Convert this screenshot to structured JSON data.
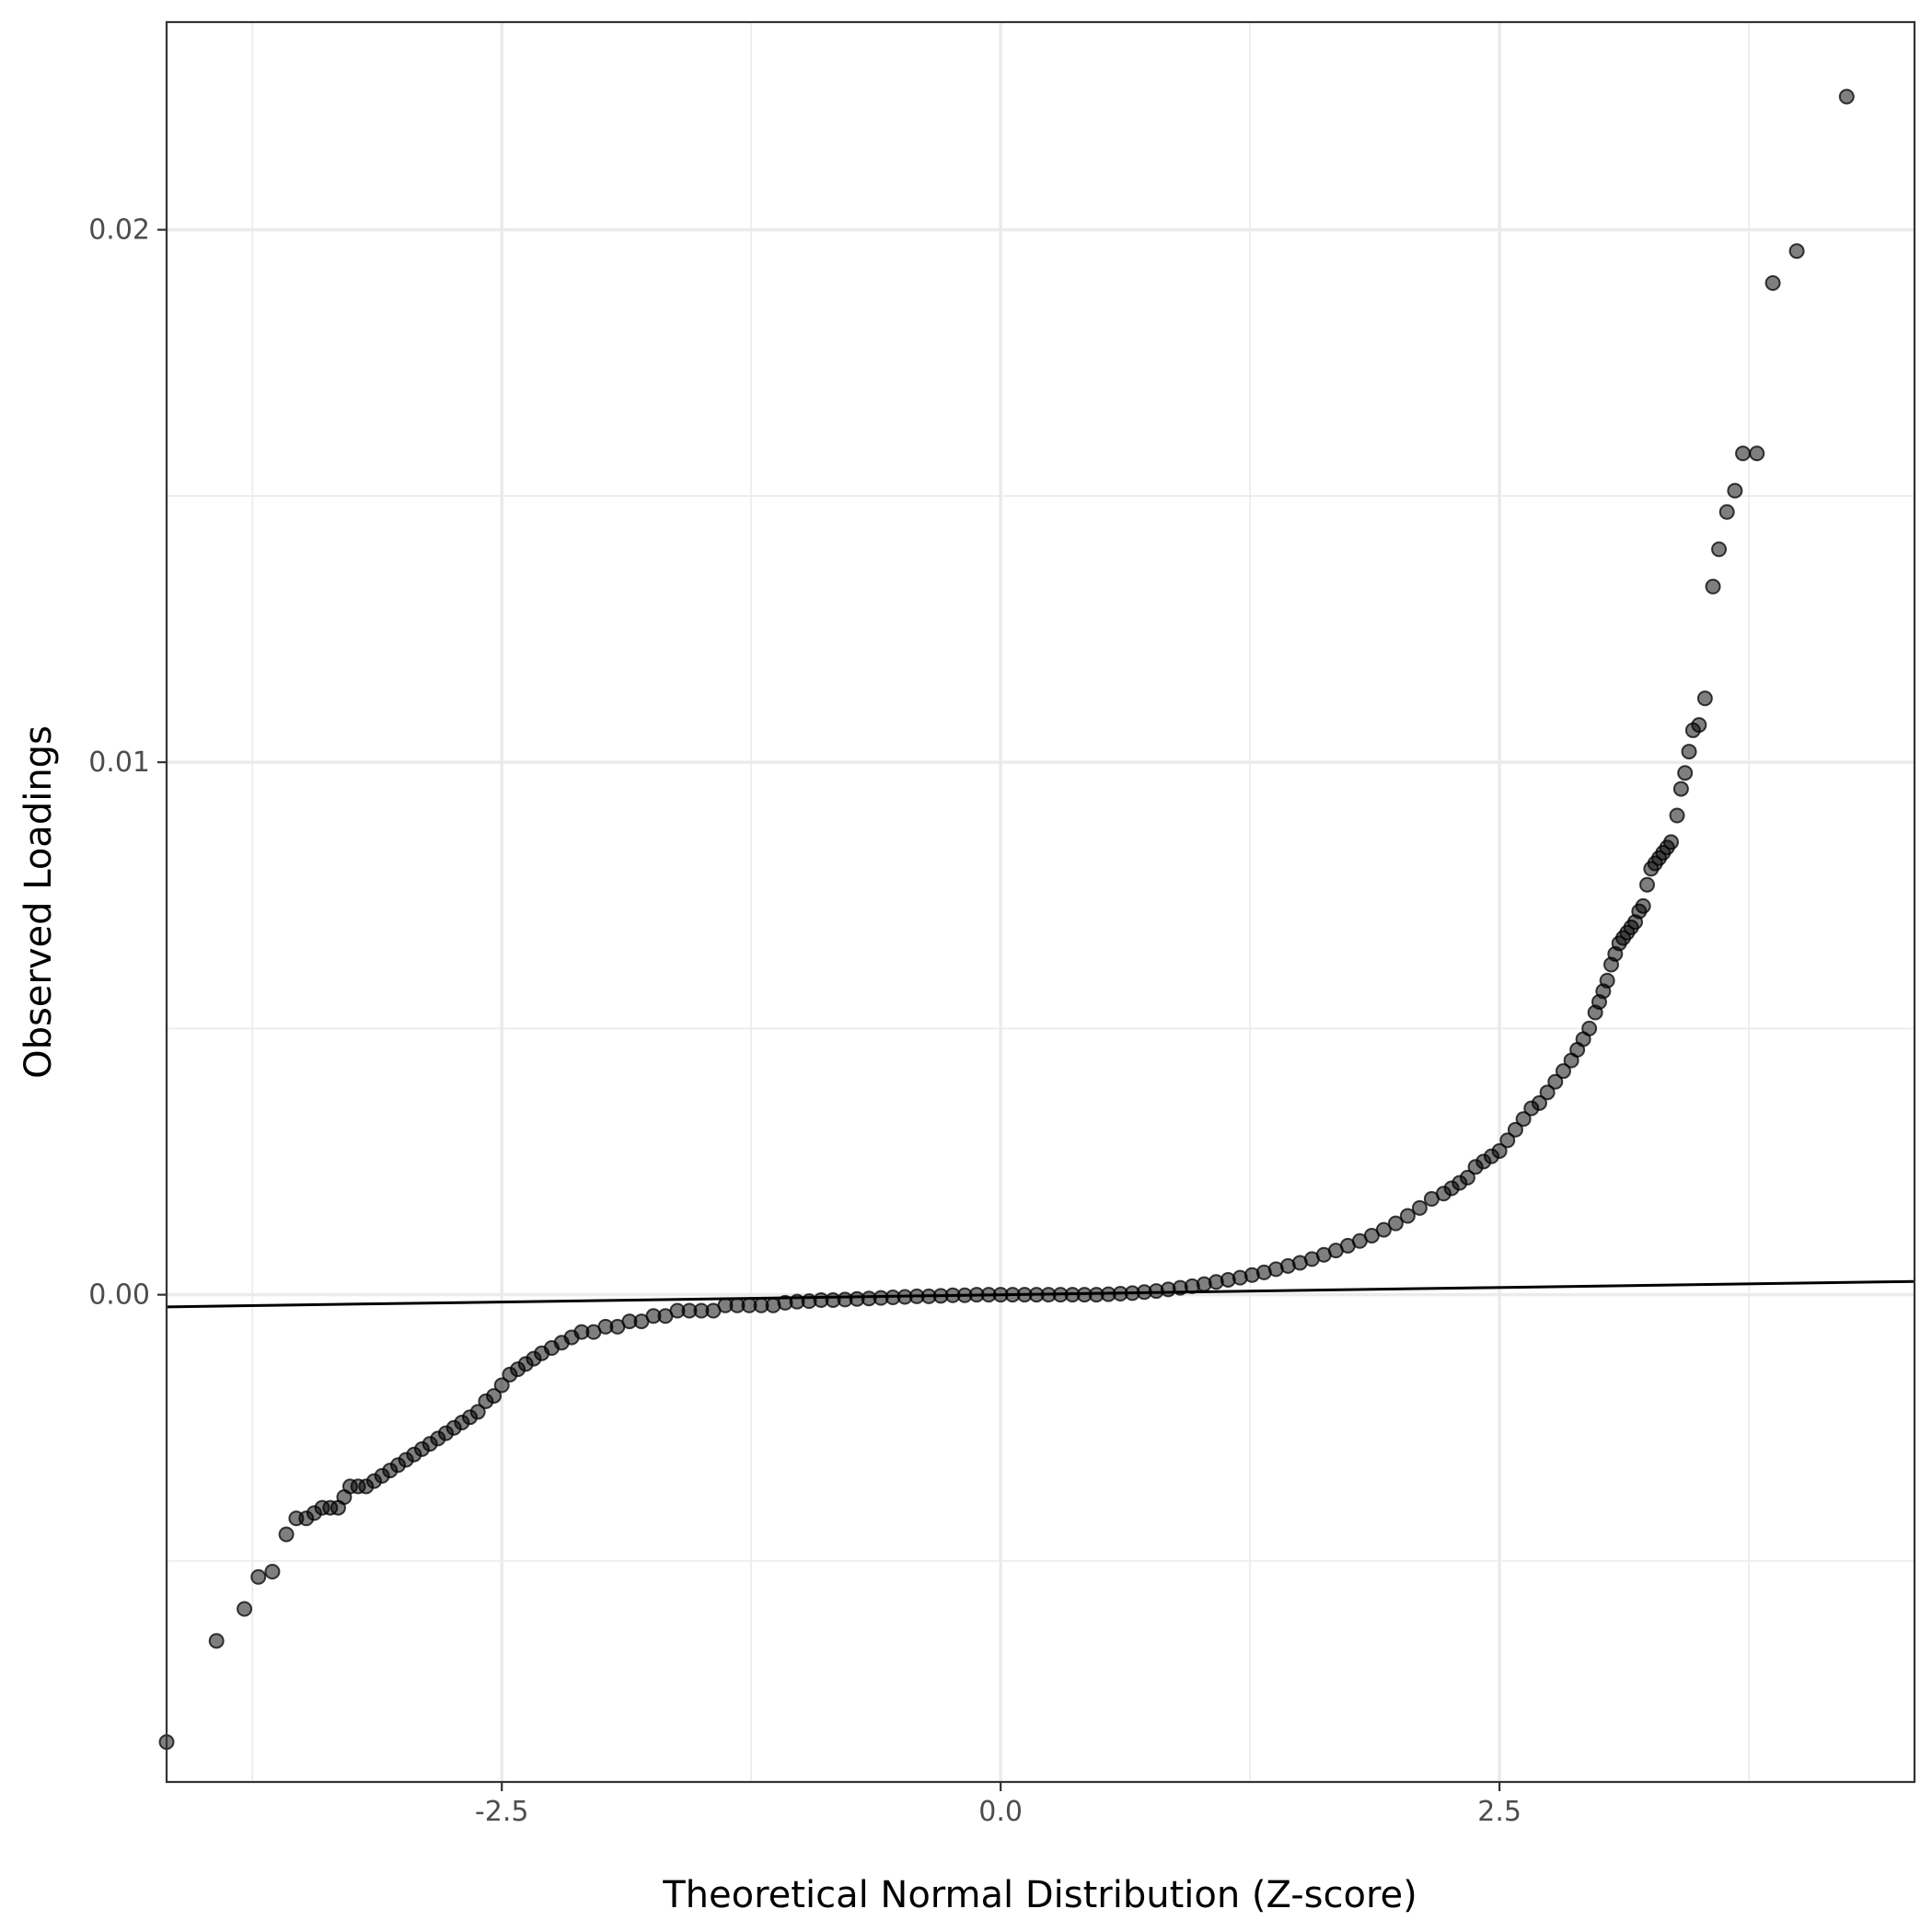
{
  "chart_data": {
    "type": "scatter",
    "title": "",
    "xlabel": "Theoretical Normal Distribution (Z-score)",
    "ylabel": "Observed Loadings",
    "xlim": [
      -4.18,
      4.58
    ],
    "ylim": [
      -0.00915,
      0.0239
    ],
    "x_ticks": [
      {
        "value": -2.5,
        "label": "-2.5"
      },
      {
        "value": 0.0,
        "label": "0.0"
      },
      {
        "value": 2.5,
        "label": "2.5"
      }
    ],
    "y_ticks": [
      {
        "value": 0.0,
        "label": "0.00"
      },
      {
        "value": 0.01,
        "label": "0.01"
      },
      {
        "value": 0.02,
        "label": "0.02"
      }
    ],
    "grid": true,
    "legend": "none",
    "reference_line": {
      "intercept": 0.0,
      "slope": 5.45e-05
    },
    "colors": {
      "points": "#000000",
      "line": "#000000",
      "grid": "#ebebeb",
      "border": "#333333"
    },
    "points": [
      [
        -4.18,
        -0.0084
      ],
      [
        -3.93,
        -0.0065
      ],
      [
        -3.79,
        -0.0059
      ],
      [
        -3.72,
        -0.0053
      ],
      [
        -3.65,
        -0.0052
      ],
      [
        -3.58,
        -0.0045
      ],
      [
        -3.53,
        -0.0042
      ],
      [
        -3.48,
        -0.0042
      ],
      [
        -3.44,
        -0.0041
      ],
      [
        -3.4,
        -0.004
      ],
      [
        -3.36,
        -0.004
      ],
      [
        -3.32,
        -0.004
      ],
      [
        -3.29,
        -0.0038
      ],
      [
        -3.26,
        -0.0036
      ],
      [
        -3.22,
        -0.0036
      ],
      [
        -3.18,
        -0.0036
      ],
      [
        -3.14,
        -0.0035
      ],
      [
        -3.1,
        -0.0034
      ],
      [
        -3.06,
        -0.0033
      ],
      [
        -3.02,
        -0.0032
      ],
      [
        -2.98,
        -0.0031
      ],
      [
        -2.94,
        -0.003
      ],
      [
        -2.9,
        -0.0029
      ],
      [
        -2.86,
        -0.0028
      ],
      [
        -2.82,
        -0.0027
      ],
      [
        -2.78,
        -0.0026
      ],
      [
        -2.74,
        -0.0025
      ],
      [
        -2.7,
        -0.0024
      ],
      [
        -2.66,
        -0.0023
      ],
      [
        -2.62,
        -0.0022
      ],
      [
        -2.58,
        -0.002
      ],
      [
        -2.54,
        -0.0019
      ],
      [
        -2.5,
        -0.0017
      ],
      [
        -2.46,
        -0.0015
      ],
      [
        -2.42,
        -0.0014
      ],
      [
        -2.38,
        -0.0013
      ],
      [
        -2.34,
        -0.0012
      ],
      [
        -2.3,
        -0.0011
      ],
      [
        -2.25,
        -0.001
      ],
      [
        -2.2,
        -0.0009
      ],
      [
        -2.15,
        -0.0008
      ],
      [
        -2.1,
        -0.0007
      ],
      [
        -2.04,
        -0.0007
      ],
      [
        -1.98,
        -0.0006
      ],
      [
        -1.92,
        -0.0006
      ],
      [
        -1.86,
        -0.0005
      ],
      [
        -1.8,
        -0.0005
      ],
      [
        -1.74,
        -0.0004
      ],
      [
        -1.68,
        -0.0004
      ],
      [
        -1.62,
        -0.0003
      ],
      [
        -1.56,
        -0.0003
      ],
      [
        -1.5,
        -0.0003
      ],
      [
        -1.44,
        -0.0003
      ],
      [
        -1.38,
        -0.0002
      ],
      [
        -1.32,
        -0.0002
      ],
      [
        -1.26,
        -0.0002
      ],
      [
        -1.2,
        -0.0002
      ],
      [
        -1.14,
        -0.0002
      ],
      [
        -1.08,
        -0.00015
      ],
      [
        -1.02,
        -0.00013
      ],
      [
        -0.96,
        -0.00012
      ],
      [
        -0.9,
        -0.0001
      ],
      [
        -0.84,
        -0.0001
      ],
      [
        -0.78,
        -9e-05
      ],
      [
        -0.72,
        -8e-05
      ],
      [
        -0.66,
        -7e-05
      ],
      [
        -0.6,
        -6e-05
      ],
      [
        -0.54,
        -5e-05
      ],
      [
        -0.48,
        -4e-05
      ],
      [
        -0.42,
        -3e-05
      ],
      [
        -0.36,
        -3e-05
      ],
      [
        -0.3,
        -2e-05
      ],
      [
        -0.24,
        -1e-05
      ],
      [
        -0.18,
        -1e-05
      ],
      [
        -0.12,
        0.0
      ],
      [
        -0.06,
        0.0
      ],
      [
        0.0,
        0.0
      ],
      [
        0.06,
        0.0
      ],
      [
        0.12,
        0.0
      ],
      [
        0.18,
        0.0
      ],
      [
        0.24,
        0.0
      ],
      [
        0.3,
        0.0
      ],
      [
        0.36,
        0.0
      ],
      [
        0.42,
        0.0
      ],
      [
        0.48,
        0.0
      ],
      [
        0.54,
        1e-05
      ],
      [
        0.6,
        2e-05
      ],
      [
        0.66,
        3e-05
      ],
      [
        0.72,
        5e-05
      ],
      [
        0.78,
        7e-05
      ],
      [
        0.84,
        0.0001
      ],
      [
        0.9,
        0.00013
      ],
      [
        0.96,
        0.00016
      ],
      [
        1.02,
        0.0002
      ],
      [
        1.08,
        0.00024
      ],
      [
        1.14,
        0.00028
      ],
      [
        1.2,
        0.00032
      ],
      [
        1.26,
        0.00037
      ],
      [
        1.32,
        0.00042
      ],
      [
        1.38,
        0.00048
      ],
      [
        1.44,
        0.00054
      ],
      [
        1.5,
        0.0006
      ],
      [
        1.56,
        0.00067
      ],
      [
        1.62,
        0.00075
      ],
      [
        1.68,
        0.00083
      ],
      [
        1.74,
        0.00092
      ],
      [
        1.8,
        0.00101
      ],
      [
        1.86,
        0.00111
      ],
      [
        1.92,
        0.00122
      ],
      [
        1.98,
        0.00134
      ],
      [
        2.04,
        0.00148
      ],
      [
        2.1,
        0.00163
      ],
      [
        2.16,
        0.0018
      ],
      [
        2.22,
        0.0019
      ],
      [
        2.26,
        0.002
      ],
      [
        2.3,
        0.0021
      ],
      [
        2.34,
        0.0022
      ],
      [
        2.38,
        0.0024
      ],
      [
        2.42,
        0.0025
      ],
      [
        2.46,
        0.0026
      ],
      [
        2.5,
        0.0027
      ],
      [
        2.54,
        0.0029
      ],
      [
        2.58,
        0.0031
      ],
      [
        2.62,
        0.0033
      ],
      [
        2.66,
        0.0035
      ],
      [
        2.7,
        0.0036
      ],
      [
        2.74,
        0.0038
      ],
      [
        2.78,
        0.004
      ],
      [
        2.82,
        0.0042
      ],
      [
        2.86,
        0.0044
      ],
      [
        2.89,
        0.0046
      ],
      [
        2.92,
        0.0048
      ],
      [
        2.95,
        0.005
      ],
      [
        2.98,
        0.0053
      ],
      [
        3.0,
        0.0055
      ],
      [
        3.02,
        0.0057
      ],
      [
        3.04,
        0.0059
      ],
      [
        3.06,
        0.0062
      ],
      [
        3.08,
        0.0064
      ],
      [
        3.1,
        0.0066
      ],
      [
        3.12,
        0.0067
      ],
      [
        3.14,
        0.0068
      ],
      [
        3.16,
        0.0069
      ],
      [
        3.18,
        0.007
      ],
      [
        3.2,
        0.0072
      ],
      [
        3.22,
        0.0073
      ],
      [
        3.24,
        0.0077
      ],
      [
        3.26,
        0.008
      ],
      [
        3.28,
        0.0081
      ],
      [
        3.3,
        0.0082
      ],
      [
        3.32,
        0.0083
      ],
      [
        3.34,
        0.0084
      ],
      [
        3.36,
        0.0085
      ],
      [
        3.39,
        0.009
      ],
      [
        3.41,
        0.0095
      ],
      [
        3.43,
        0.0098
      ],
      [
        3.45,
        0.0102
      ],
      [
        3.47,
        0.0106
      ],
      [
        3.5,
        0.0107
      ],
      [
        3.53,
        0.0112
      ],
      [
        3.57,
        0.0133
      ],
      [
        3.6,
        0.014
      ],
      [
        3.64,
        0.0147
      ],
      [
        3.68,
        0.0151
      ],
      [
        3.72,
        0.0158
      ],
      [
        3.79,
        0.0158
      ],
      [
        3.87,
        0.019
      ],
      [
        3.99,
        0.0196
      ],
      [
        4.24,
        0.0225
      ]
    ]
  }
}
